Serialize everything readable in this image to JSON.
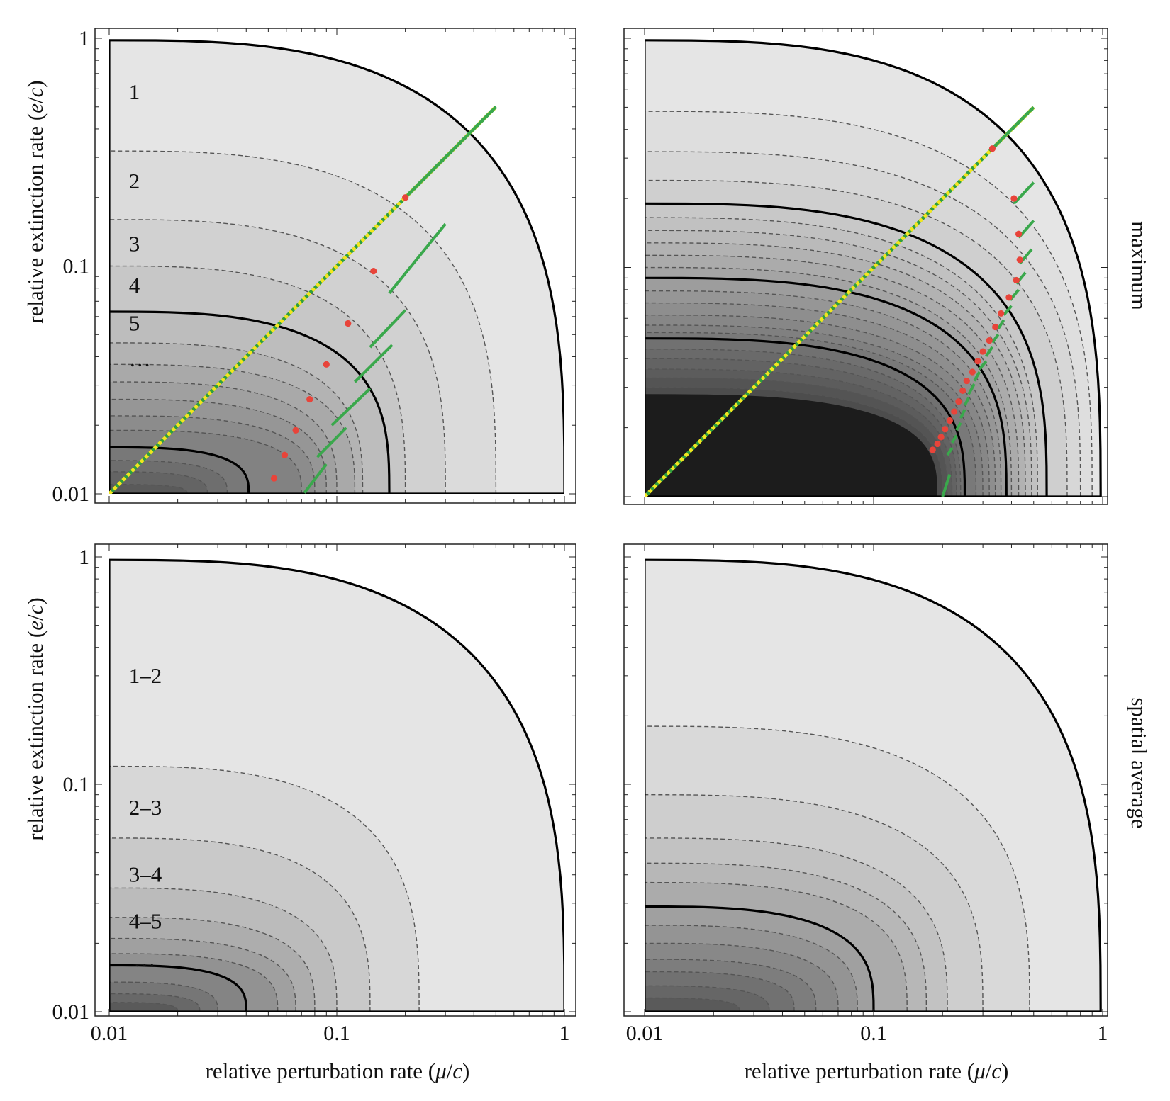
{
  "figure": {
    "row_labels": [
      "maximum",
      "spatial average"
    ],
    "x_axis_title_parts": [
      "relative perturbation rate (",
      "μ",
      "/",
      "c",
      ")"
    ],
    "y_axis_title_parts": [
      "relative extinction rate (",
      "e",
      "/",
      "c",
      ")"
    ]
  },
  "chart_data": [
    {
      "type": "contour",
      "panel": "top-left",
      "row": "maximum",
      "xlabel": "relative perturbation rate (μ/c)",
      "ylabel": "relative extinction rate (e/c)",
      "x_scale": "log",
      "y_scale": "log",
      "xlim": [
        0.01,
        1
      ],
      "ylim": [
        0.01,
        1
      ],
      "x_ticks": [],
      "y_ticks": [
        "0.01",
        "0.1",
        "1"
      ],
      "solid_contours": [
        {
          "x_at_bottom": 1.0,
          "y_at_left": 0.98
        },
        {
          "x_at_bottom": 0.17,
          "y_at_left": 0.063
        },
        {
          "x_at_bottom": 0.041,
          "y_at_left": 0.016
        }
      ],
      "dashed_contours": [
        {
          "x_at_bottom": 0.5,
          "y_at_left": 0.32
        },
        {
          "x_at_bottom": 0.3,
          "y_at_left": 0.16
        },
        {
          "x_at_bottom": 0.2,
          "y_at_left": 0.1
        },
        {
          "x_at_bottom": 0.13,
          "y_at_left": 0.046
        },
        {
          "x_at_bottom": 0.12,
          "y_at_left": 0.037
        },
        {
          "x_at_bottom": 0.1,
          "y_at_left": 0.031
        },
        {
          "x_at_bottom": 0.09,
          "y_at_left": 0.026
        },
        {
          "x_at_bottom": 0.08,
          "y_at_left": 0.022
        },
        {
          "x_at_bottom": 0.07,
          "y_at_left": 0.019
        },
        {
          "x_at_bottom": 0.033,
          "y_at_left": 0.014
        },
        {
          "x_at_bottom": 0.027,
          "y_at_left": 0.0125
        },
        {
          "x_at_bottom": 0.022,
          "y_at_left": 0.011
        }
      ],
      "region_labels": [
        {
          "text": "1",
          "x": 0.0122,
          "y": 0.58
        },
        {
          "text": "2",
          "x": 0.0122,
          "y": 0.235
        },
        {
          "text": "3",
          "x": 0.0122,
          "y": 0.125
        },
        {
          "text": "4",
          "x": 0.0122,
          "y": 0.082
        },
        {
          "text": "5",
          "x": 0.0122,
          "y": 0.056
        },
        {
          "text": "…",
          "x": 0.0122,
          "y": 0.039
        }
      ],
      "yellow_diagonal": {
        "from": [
          0.01,
          0.01
        ],
        "to": [
          0.5,
          0.5
        ]
      },
      "red_points": [
        {
          "x": 0.2,
          "y": 0.2
        },
        {
          "x": 0.145,
          "y": 0.095
        },
        {
          "x": 0.112,
          "y": 0.056
        },
        {
          "x": 0.09,
          "y": 0.037
        },
        {
          "x": 0.076,
          "y": 0.026
        },
        {
          "x": 0.066,
          "y": 0.019
        },
        {
          "x": 0.059,
          "y": 0.0148
        },
        {
          "x": 0.053,
          "y": 0.0117
        }
      ],
      "green_segments": [
        {
          "from": [
            0.2,
            0.2
          ],
          "to": [
            0.5,
            0.5
          ]
        },
        {
          "from": [
            0.17,
            0.076
          ],
          "to": [
            0.3,
            0.153
          ]
        },
        {
          "from": [
            0.14,
            0.044
          ],
          "to": [
            0.2,
            0.064
          ]
        },
        {
          "from": [
            0.12,
            0.031
          ],
          "to": [
            0.175,
            0.045
          ]
        },
        {
          "from": [
            0.095,
            0.02
          ],
          "to": [
            0.14,
            0.029
          ]
        },
        {
          "from": [
            0.082,
            0.0145
          ],
          "to": [
            0.11,
            0.0195
          ]
        },
        {
          "from": [
            0.072,
            0.0101
          ],
          "to": [
            0.09,
            0.0135
          ]
        }
      ]
    },
    {
      "type": "contour",
      "panel": "top-right",
      "row": "maximum",
      "xlabel": "relative perturbation rate (μ/c)",
      "ylabel": "relative extinction rate (e/c)",
      "x_scale": "log",
      "y_scale": "log",
      "xlim": [
        0.01,
        1
      ],
      "ylim": [
        0.01,
        1
      ],
      "x_ticks": [],
      "y_ticks": [],
      "solid_contours": [
        {
          "x_at_bottom": 0.98,
          "y_at_left": 0.98
        },
        {
          "x_at_bottom": 0.57,
          "y_at_left": 0.19
        },
        {
          "x_at_bottom": 0.38,
          "y_at_left": 0.09
        },
        {
          "x_at_bottom": 0.25,
          "y_at_left": 0.049
        }
      ],
      "dashed_contours": [
        {
          "x_at_bottom": 0.9,
          "y_at_left": 0.48
        },
        {
          "x_at_bottom": 0.8,
          "y_at_left": 0.32
        },
        {
          "x_at_bottom": 0.7,
          "y_at_left": 0.24
        },
        {
          "x_at_bottom": 0.52,
          "y_at_left": 0.165
        },
        {
          "x_at_bottom": 0.49,
          "y_at_left": 0.145
        },
        {
          "x_at_bottom": 0.46,
          "y_at_left": 0.128
        },
        {
          "x_at_bottom": 0.43,
          "y_at_left": 0.113
        },
        {
          "x_at_bottom": 0.4,
          "y_at_left": 0.1
        },
        {
          "x_at_bottom": 0.36,
          "y_at_left": 0.079
        },
        {
          "x_at_bottom": 0.34,
          "y_at_left": 0.07
        },
        {
          "x_at_bottom": 0.32,
          "y_at_left": 0.062
        },
        {
          "x_at_bottom": 0.3,
          "y_at_left": 0.056
        },
        {
          "x_at_bottom": 0.28,
          "y_at_left": 0.052
        },
        {
          "x_at_bottom": 0.24,
          "y_at_left": 0.044
        },
        {
          "x_at_bottom": 0.23,
          "y_at_left": 0.04
        },
        {
          "x_at_bottom": 0.22,
          "y_at_left": 0.036
        },
        {
          "x_at_bottom": 0.21,
          "y_at_left": 0.033
        },
        {
          "x_at_bottom": 0.2,
          "y_at_left": 0.03
        }
      ],
      "dark_core": {
        "x_at_bottom": 0.19,
        "y_at_left": 0.028
      },
      "region_labels": [],
      "yellow_diagonal": {
        "from": [
          0.01,
          0.01
        ],
        "to": [
          0.5,
          0.5
        ]
      },
      "red_points": [
        {
          "x": 0.33,
          "y": 0.33
        },
        {
          "x": 0.41,
          "y": 0.2
        },
        {
          "x": 0.43,
          "y": 0.14
        },
        {
          "x": 0.435,
          "y": 0.108
        },
        {
          "x": 0.42,
          "y": 0.088
        },
        {
          "x": 0.39,
          "y": 0.074
        },
        {
          "x": 0.36,
          "y": 0.063
        },
        {
          "x": 0.34,
          "y": 0.055
        },
        {
          "x": 0.32,
          "y": 0.048
        },
        {
          "x": 0.3,
          "y": 0.043
        },
        {
          "x": 0.285,
          "y": 0.039
        },
        {
          "x": 0.27,
          "y": 0.035
        },
        {
          "x": 0.255,
          "y": 0.032
        },
        {
          "x": 0.245,
          "y": 0.029
        },
        {
          "x": 0.235,
          "y": 0.026
        },
        {
          "x": 0.225,
          "y": 0.0235
        },
        {
          "x": 0.215,
          "y": 0.0215
        },
        {
          "x": 0.205,
          "y": 0.0197
        },
        {
          "x": 0.197,
          "y": 0.0182
        },
        {
          "x": 0.19,
          "y": 0.017
        },
        {
          "x": 0.181,
          "y": 0.016
        }
      ],
      "green_segments": [
        {
          "from": [
            0.33,
            0.33
          ],
          "to": [
            0.5,
            0.5
          ]
        },
        {
          "from": [
            0.41,
            0.19
          ],
          "to": [
            0.5,
            0.235
          ]
        },
        {
          "from": [
            0.43,
            0.135
          ],
          "to": [
            0.5,
            0.16
          ]
        },
        {
          "from": [
            0.435,
            0.104
          ],
          "to": [
            0.49,
            0.12
          ]
        },
        {
          "from": [
            0.42,
            0.085
          ],
          "to": [
            0.46,
            0.095
          ]
        },
        {
          "from": [
            0.395,
            0.072
          ],
          "to": [
            0.43,
            0.08
          ]
        },
        {
          "from": [
            0.37,
            0.062
          ],
          "to": [
            0.4,
            0.068
          ]
        },
        {
          "from": [
            0.35,
            0.054
          ],
          "to": [
            0.37,
            0.059
          ]
        },
        {
          "from": [
            0.33,
            0.047
          ],
          "to": [
            0.35,
            0.051
          ]
        },
        {
          "from": [
            0.31,
            0.041
          ],
          "to": [
            0.33,
            0.045
          ]
        },
        {
          "from": [
            0.29,
            0.036
          ],
          "to": [
            0.31,
            0.039
          ]
        },
        {
          "from": [
            0.275,
            0.032
          ],
          "to": [
            0.29,
            0.035
          ]
        },
        {
          "from": [
            0.26,
            0.028
          ],
          "to": [
            0.275,
            0.031
          ]
        },
        {
          "from": [
            0.25,
            0.025
          ],
          "to": [
            0.26,
            0.027
          ]
        },
        {
          "from": [
            0.24,
            0.022
          ],
          "to": [
            0.25,
            0.024
          ]
        },
        {
          "from": [
            0.23,
            0.0195
          ],
          "to": [
            0.24,
            0.021
          ]
        },
        {
          "from": [
            0.22,
            0.0172
          ],
          "to": [
            0.23,
            0.0185
          ]
        },
        {
          "from": [
            0.21,
            0.0152
          ],
          "to": [
            0.22,
            0.0163
          ]
        },
        {
          "from": [
            0.2,
            0.01
          ],
          "to": [
            0.215,
            0.0125
          ]
        }
      ]
    },
    {
      "type": "contour",
      "panel": "bottom-left",
      "row": "spatial average",
      "xlabel": "relative perturbation rate (μ/c)",
      "ylabel": "relative extinction rate (e/c)",
      "x_scale": "log",
      "y_scale": "log",
      "xlim": [
        0.01,
        1
      ],
      "ylim": [
        0.01,
        1
      ],
      "x_ticks": [
        "0.01",
        "0.1",
        "1"
      ],
      "y_ticks": [
        "0.01",
        "0.1",
        "1"
      ],
      "solid_contours": [
        {
          "x_at_bottom": 1.0,
          "y_at_left": 0.97
        },
        {
          "x_at_bottom": 0.04,
          "y_at_left": 0.016
        }
      ],
      "dashed_contours": [
        {
          "x_at_bottom": 0.23,
          "y_at_left": 0.12
        },
        {
          "x_at_bottom": 0.14,
          "y_at_left": 0.058
        },
        {
          "x_at_bottom": 0.1,
          "y_at_left": 0.035
        },
        {
          "x_at_bottom": 0.08,
          "y_at_left": 0.026
        },
        {
          "x_at_bottom": 0.066,
          "y_at_left": 0.021
        },
        {
          "x_at_bottom": 0.055,
          "y_at_left": 0.018
        },
        {
          "x_at_bottom": 0.03,
          "y_at_left": 0.0135
        },
        {
          "x_at_bottom": 0.025,
          "y_at_left": 0.012
        },
        {
          "x_at_bottom": 0.02,
          "y_at_left": 0.011
        }
      ],
      "region_labels": [
        {
          "text": "1–2",
          "x": 0.0122,
          "y": 0.3
        },
        {
          "text": "2–3",
          "x": 0.0122,
          "y": 0.079
        },
        {
          "text": "3–4",
          "x": 0.0122,
          "y": 0.04
        },
        {
          "text": "4–5",
          "x": 0.0122,
          "y": 0.025
        },
        {
          "text": "…",
          "x": 0.0128,
          "y": 0.017
        }
      ],
      "yellow_diagonal": null,
      "red_points": [],
      "green_segments": []
    },
    {
      "type": "contour",
      "panel": "bottom-right",
      "row": "spatial average",
      "xlabel": "relative perturbation rate (μ/c)",
      "ylabel": "relative extinction rate (e/c)",
      "x_scale": "log",
      "y_scale": "log",
      "xlim": [
        0.01,
        1
      ],
      "ylim": [
        0.01,
        1
      ],
      "x_ticks": [
        "0.01",
        "0.1",
        "1"
      ],
      "y_ticks": [],
      "solid_contours": [
        {
          "x_at_bottom": 0.98,
          "y_at_left": 0.97
        },
        {
          "x_at_bottom": 0.1,
          "y_at_left": 0.029
        }
      ],
      "dashed_contours": [
        {
          "x_at_bottom": 0.48,
          "y_at_left": 0.18
        },
        {
          "x_at_bottom": 0.3,
          "y_at_left": 0.09
        },
        {
          "x_at_bottom": 0.21,
          "y_at_left": 0.058
        },
        {
          "x_at_bottom": 0.17,
          "y_at_left": 0.045
        },
        {
          "x_at_bottom": 0.14,
          "y_at_left": 0.037
        },
        {
          "x_at_bottom": 0.085,
          "y_at_left": 0.024
        },
        {
          "x_at_bottom": 0.07,
          "y_at_left": 0.02
        },
        {
          "x_at_bottom": 0.056,
          "y_at_left": 0.017
        },
        {
          "x_at_bottom": 0.045,
          "y_at_left": 0.015
        },
        {
          "x_at_bottom": 0.035,
          "y_at_left": 0.013
        },
        {
          "x_at_bottom": 0.026,
          "y_at_left": 0.0115
        }
      ],
      "region_labels": [],
      "yellow_diagonal": null,
      "red_points": [],
      "green_segments": []
    }
  ]
}
